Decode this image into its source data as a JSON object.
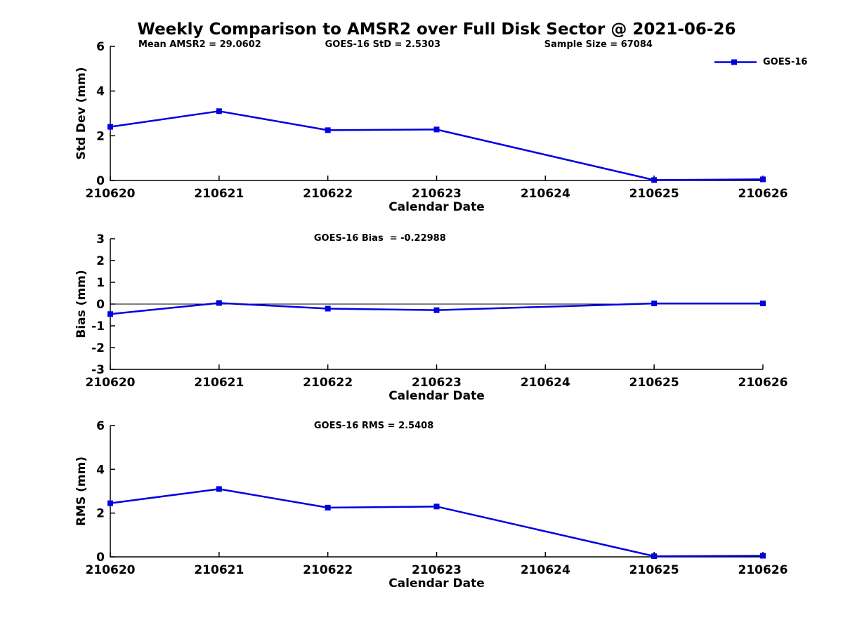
{
  "title": "Weekly Comparison to AMSR2 over Full Disk Sector @ 2021-06-26",
  "legend": {
    "label": "GOES-16",
    "position": "top-right",
    "frame": false
  },
  "colors": {
    "line": "#0000e0",
    "axis": "#000000",
    "text": "#000000",
    "background": "#ffffff"
  },
  "chart_data": [
    {
      "type": "line",
      "id": "std-dev",
      "ylabel": "Std Dev (mm)",
      "xlabel": "Calendar Date",
      "ylim": [
        0,
        6
      ],
      "yticks": [
        0,
        2,
        4,
        6
      ],
      "categories": [
        "210620",
        "210621",
        "210622",
        "210623",
        "210624",
        "210625",
        "210626"
      ],
      "grid": false,
      "zero_line": false,
      "annotations": [
        {
          "text": "Mean AMSR2 = 29.0602",
          "xfrac": 0.043
        },
        {
          "text": "GOES-16 StD = 2.5303",
          "xfrac": 0.329
        },
        {
          "text": "Sample Size = 67084",
          "xfrac": 0.665
        }
      ],
      "series": [
        {
          "name": "GOES-16",
          "points": [
            {
              "x": "210620",
              "y": 2.4
            },
            {
              "x": "210621",
              "y": 3.1
            },
            {
              "x": "210622",
              "y": 2.25
            },
            {
              "x": "210623",
              "y": 2.28
            },
            {
              "x": "210625",
              "y": 0.02
            },
            {
              "x": "210626",
              "y": 0.05
            }
          ]
        }
      ]
    },
    {
      "type": "line",
      "id": "bias",
      "ylabel": "Bias (mm)",
      "xlabel": "Calendar Date",
      "ylim": [
        -3,
        3
      ],
      "yticks": [
        -3,
        -2,
        -1,
        0,
        1,
        2,
        3
      ],
      "categories": [
        "210620",
        "210621",
        "210622",
        "210623",
        "210624",
        "210625",
        "210626"
      ],
      "grid": false,
      "zero_line": true,
      "annotations": [
        {
          "text": "GOES-16 Bias  = -0.22988",
          "xfrac": 0.312
        }
      ],
      "series": [
        {
          "name": "GOES-16",
          "points": [
            {
              "x": "210620",
              "y": -0.46
            },
            {
              "x": "210621",
              "y": 0.05
            },
            {
              "x": "210622",
              "y": -0.21
            },
            {
              "x": "210623",
              "y": -0.28
            },
            {
              "x": "210625",
              "y": 0.03
            },
            {
              "x": "210626",
              "y": 0.03
            }
          ]
        }
      ]
    },
    {
      "type": "line",
      "id": "rms",
      "ylabel": "RMS (mm)",
      "xlabel": "Calendar Date",
      "ylim": [
        0,
        6
      ],
      "yticks": [
        0,
        2,
        4,
        6
      ],
      "categories": [
        "210620",
        "210621",
        "210622",
        "210623",
        "210624",
        "210625",
        "210626"
      ],
      "grid": false,
      "zero_line": false,
      "annotations": [
        {
          "text": "GOES-16 RMS = 2.5408",
          "xfrac": 0.312
        }
      ],
      "series": [
        {
          "name": "GOES-16",
          "points": [
            {
              "x": "210620",
              "y": 2.45
            },
            {
              "x": "210621",
              "y": 3.1
            },
            {
              "x": "210622",
              "y": 2.25
            },
            {
              "x": "210623",
              "y": 2.3
            },
            {
              "x": "210625",
              "y": 0.03
            },
            {
              "x": "210626",
              "y": 0.05
            }
          ]
        }
      ]
    }
  ]
}
